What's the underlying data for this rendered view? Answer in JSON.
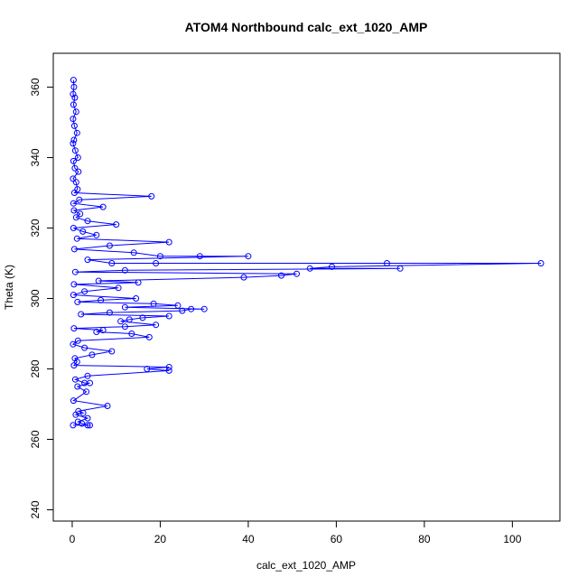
{
  "chart_data": {
    "type": "line",
    "title": "ATOM4 Northbound calc_ext_1020_AMP",
    "xlabel": "calc_ext_1020_AMP",
    "ylabel": "Theta (K)",
    "xlim": [
      -4.3,
      110.8
    ],
    "ylim": [
      236.8,
      369.6
    ],
    "xticks": [
      0,
      20,
      40,
      60,
      80,
      100
    ],
    "yticks": [
      240,
      260,
      280,
      300,
      320,
      340,
      360
    ],
    "grid": false,
    "series_color": "#0000ff",
    "series": [
      {
        "marker": "open-circle",
        "points": [
          [
            0.3,
            362
          ],
          [
            0.4,
            360
          ],
          [
            0.2,
            358
          ],
          [
            0.6,
            357
          ],
          [
            0.3,
            355
          ],
          [
            0.9,
            353
          ],
          [
            0.2,
            351
          ],
          [
            0.5,
            349
          ],
          [
            1.1,
            347
          ],
          [
            0.4,
            345
          ],
          [
            0.2,
            344
          ],
          [
            0.7,
            342
          ],
          [
            1.3,
            340
          ],
          [
            0.3,
            339
          ],
          [
            0.6,
            337
          ],
          [
            1.4,
            336
          ],
          [
            0.2,
            334
          ],
          [
            0.9,
            333
          ],
          [
            1.2,
            331
          ],
          [
            0.5,
            330
          ],
          [
            18,
            329
          ],
          [
            1.6,
            328
          ],
          [
            0.3,
            327
          ],
          [
            7,
            326
          ],
          [
            0.4,
            325
          ],
          [
            1.8,
            324
          ],
          [
            0.9,
            323
          ],
          [
            3.5,
            322
          ],
          [
            10,
            321
          ],
          [
            0.3,
            320
          ],
          [
            2.4,
            319
          ],
          [
            5.5,
            318
          ],
          [
            1.1,
            317
          ],
          [
            22,
            316
          ],
          [
            8.5,
            315
          ],
          [
            0.5,
            314
          ],
          [
            14,
            313
          ],
          [
            20,
            312
          ],
          [
            29,
            312
          ],
          [
            40,
            312
          ],
          [
            3.5,
            311
          ],
          [
            9,
            310
          ],
          [
            19,
            310
          ],
          [
            71.5,
            310
          ],
          [
            106.5,
            310
          ],
          [
            59,
            309
          ],
          [
            54,
            308.5
          ],
          [
            74.5,
            308.5
          ],
          [
            12,
            308
          ],
          [
            0.7,
            307.5
          ],
          [
            51,
            307
          ],
          [
            47.5,
            306.5
          ],
          [
            39,
            306
          ],
          [
            6,
            305
          ],
          [
            15,
            304.5
          ],
          [
            0.4,
            304
          ],
          [
            10.5,
            303
          ],
          [
            2.8,
            302
          ],
          [
            0.3,
            301
          ],
          [
            14.5,
            300
          ],
          [
            6.5,
            299.5
          ],
          [
            1.2,
            299
          ],
          [
            18.5,
            298.5
          ],
          [
            24,
            298
          ],
          [
            12,
            297.5
          ],
          [
            30,
            297
          ],
          [
            27,
            297
          ],
          [
            25,
            296.5
          ],
          [
            8.5,
            296
          ],
          [
            2,
            295.5
          ],
          [
            22,
            295
          ],
          [
            16,
            294.5
          ],
          [
            13,
            294
          ],
          [
            11,
            293.5
          ],
          [
            19,
            292.5
          ],
          [
            12,
            292
          ],
          [
            0.4,
            291.5
          ],
          [
            7,
            291
          ],
          [
            5.5,
            290.5
          ],
          [
            13.5,
            290
          ],
          [
            17.5,
            289
          ],
          [
            1.3,
            288
          ],
          [
            0.2,
            287
          ],
          [
            2.8,
            286
          ],
          [
            9,
            285
          ],
          [
            4.5,
            284
          ],
          [
            0.6,
            283
          ],
          [
            1.1,
            282
          ],
          [
            0.4,
            281
          ],
          [
            22,
            280.5
          ],
          [
            17,
            280
          ],
          [
            22,
            279.5
          ],
          [
            3.5,
            278
          ],
          [
            0.7,
            277
          ],
          [
            2.8,
            276
          ],
          [
            4,
            276
          ],
          [
            1.2,
            275
          ],
          [
            3.2,
            273.5
          ],
          [
            0.3,
            271
          ],
          [
            8,
            269.5
          ],
          [
            1.4,
            268
          ],
          [
            2.5,
            267.5
          ],
          [
            0.8,
            267
          ],
          [
            3.5,
            266
          ],
          [
            1.3,
            265
          ],
          [
            2.2,
            264.5
          ],
          [
            3.5,
            264
          ],
          [
            4,
            264
          ],
          [
            0.2,
            264
          ]
        ]
      }
    ]
  }
}
